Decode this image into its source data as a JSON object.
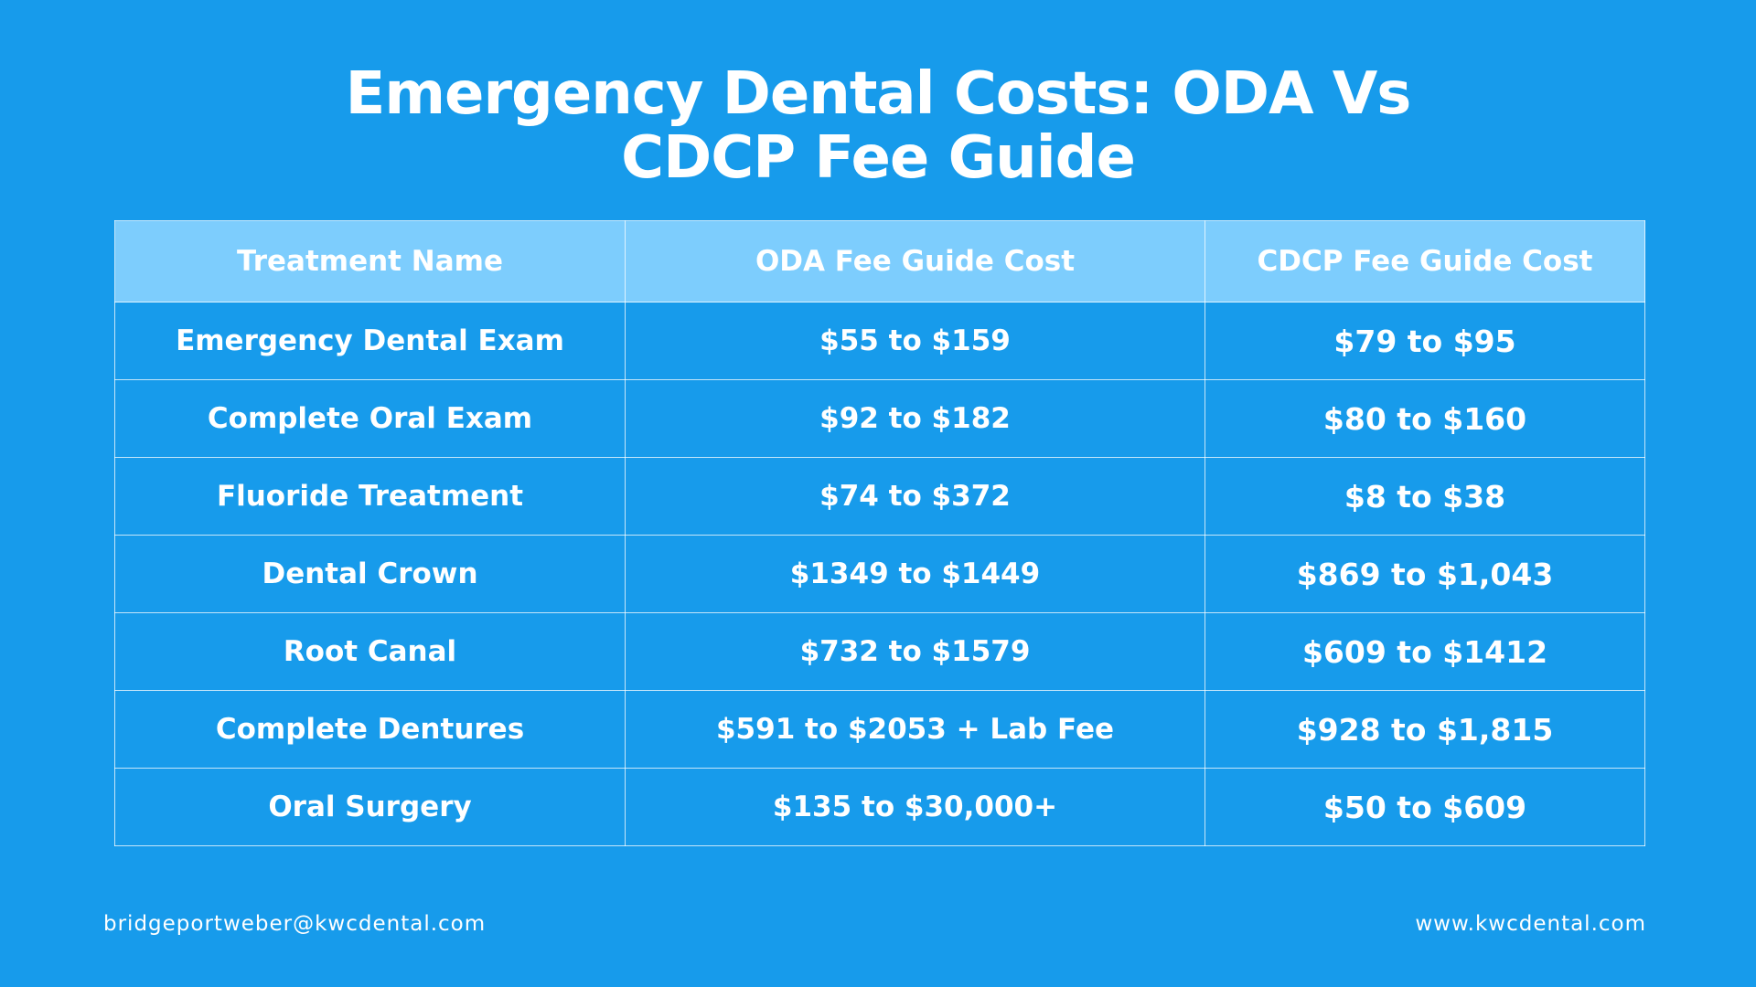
{
  "title": {
    "line1": "Emergency Dental Costs: ODA Vs",
    "line2": "CDCP Fee Guide"
  },
  "table": {
    "headers": [
      "Treatment Name",
      "ODA Fee Guide Cost",
      "CDCP Fee Guide Cost"
    ],
    "rows": [
      [
        "Emergency Dental Exam",
        "$55 to $159",
        "$79 to $95"
      ],
      [
        "Complete Oral Exam",
        "$92 to $182",
        "$80 to $160"
      ],
      [
        "Fluoride Treatment",
        "$74 to $372",
        "$8 to $38"
      ],
      [
        "Dental Crown",
        "$1349 to $1449",
        "$869 to $1,043"
      ],
      [
        "Root Canal",
        "$732 to $1579",
        "$609 to $1412"
      ],
      [
        "Complete Dentures",
        "$591 to $2053 + Lab Fee",
        "$928 to $1,815"
      ],
      [
        "Oral Surgery",
        "$135 to $30,000+",
        "$50 to $609"
      ]
    ]
  },
  "footer": {
    "email": "bridgeportweber@kwcdental.com",
    "website": "www.kwcdental.com"
  },
  "colors": {
    "background": "#179BEB",
    "header_row": "#7DCDFD",
    "text": "#FFFFFF"
  }
}
